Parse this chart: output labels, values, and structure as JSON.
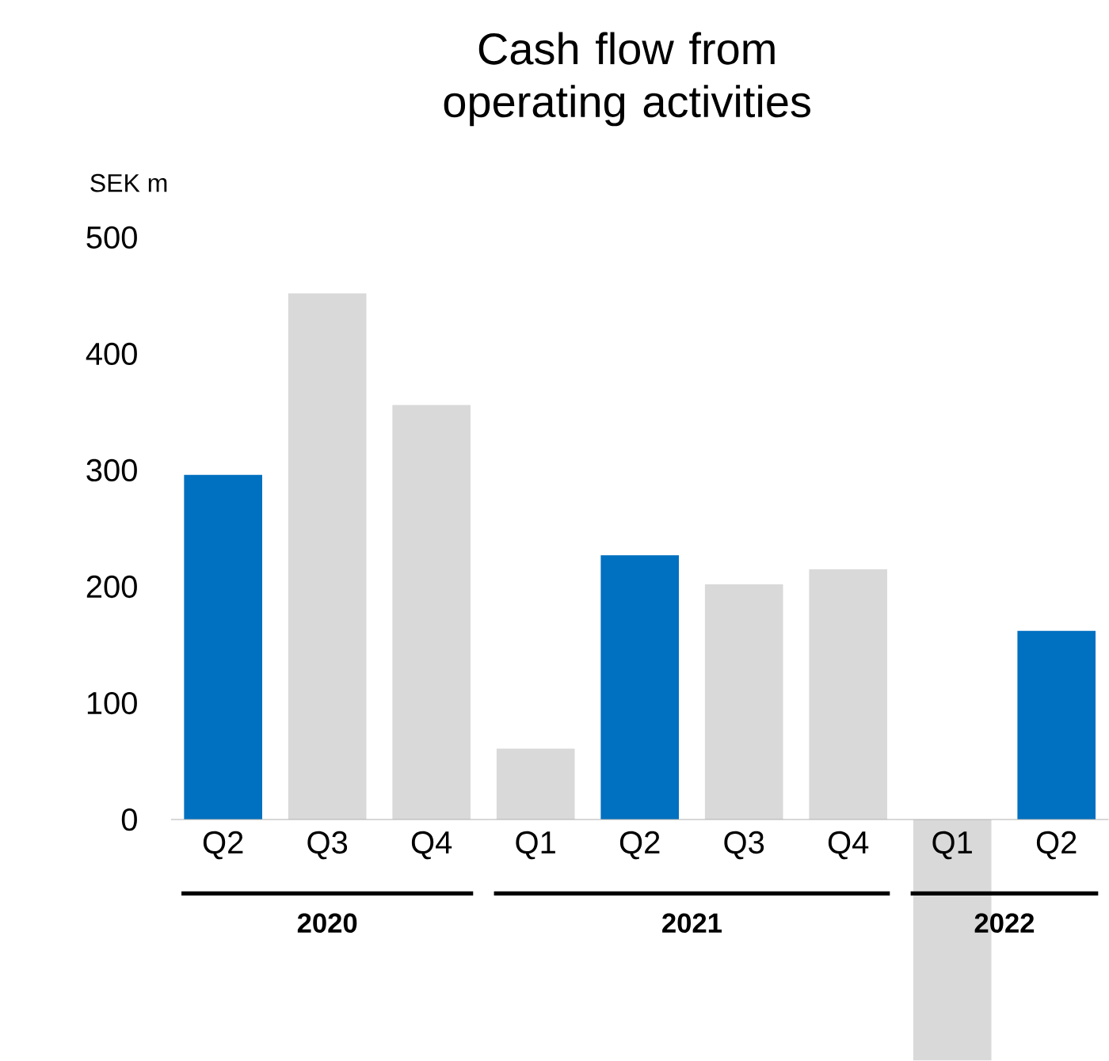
{
  "chart_data": {
    "type": "bar",
    "title": "Cash flow from operating activities",
    "ylabel": "SEK m",
    "categories": [
      "Q2",
      "Q3",
      "Q4",
      "Q1",
      "Q2",
      "Q3",
      "Q4",
      "Q1",
      "Q2"
    ],
    "values": [
      296,
      452,
      356,
      61,
      227,
      202,
      215,
      -207,
      162
    ],
    "colors": [
      "#0070c0",
      "#d9d9d9",
      "#d9d9d9",
      "#d9d9d9",
      "#0070c0",
      "#d9d9d9",
      "#d9d9d9",
      "#d9d9d9",
      "#0070c0"
    ],
    "ylim": [
      -207,
      500
    ],
    "yticks": [
      0,
      100,
      200,
      300,
      400,
      500
    ],
    "annotations": [
      "2020",
      "2021",
      "2022"
    ]
  }
}
